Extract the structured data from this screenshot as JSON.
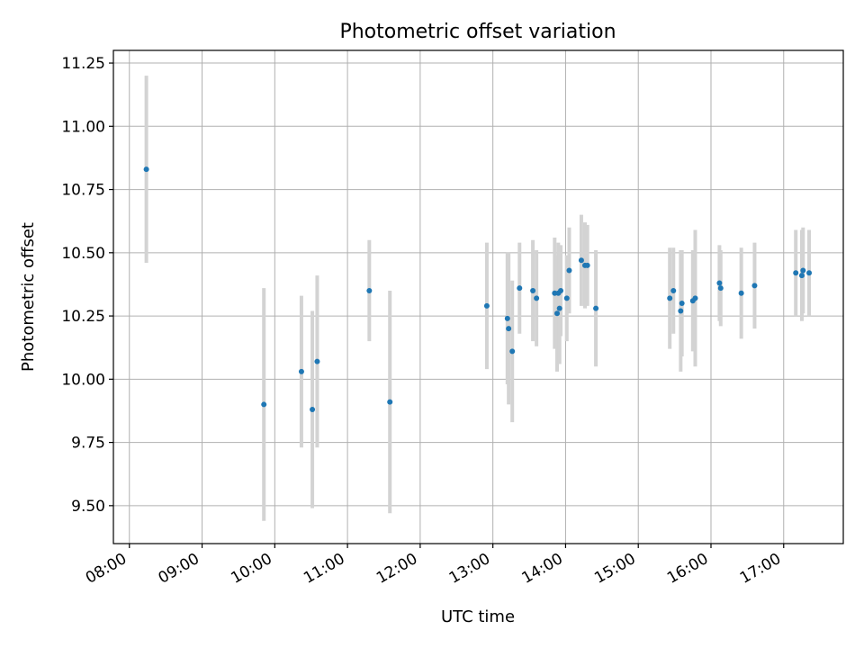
{
  "chart_data": {
    "type": "scatter",
    "title": "Photometric offset variation",
    "xlabel": "UTC time",
    "ylabel": "Photometric offset",
    "x_unit": "hours UTC",
    "xlim": [
      7.78,
      17.82
    ],
    "ylim": [
      9.35,
      11.3
    ],
    "x_ticks": [
      8,
      9,
      10,
      11,
      12,
      13,
      14,
      15,
      16,
      17
    ],
    "x_tick_labels": [
      "08:00",
      "09:00",
      "10:00",
      "11:00",
      "12:00",
      "13:00",
      "14:00",
      "15:00",
      "16:00",
      "17:00"
    ],
    "y_ticks": [
      9.5,
      9.75,
      10.0,
      10.25,
      10.5,
      10.75,
      11.0,
      11.25
    ],
    "y_tick_labels": [
      "9.50",
      "9.75",
      "10.00",
      "10.25",
      "10.50",
      "10.75",
      "11.00",
      "11.25"
    ],
    "grid": true,
    "colors": {
      "point": "#1f77b4",
      "errorbar": "#d3d3d3",
      "grid": "#b0b0b0"
    },
    "series": [
      {
        "points": [
          {
            "x": "08:14",
            "y": 10.83,
            "err": 0.37
          },
          {
            "x": "09:51",
            "y": 9.9,
            "err": 0.46
          },
          {
            "x": "10:22",
            "y": 10.03,
            "err": 0.3
          },
          {
            "x": "10:31",
            "y": 9.88,
            "err": 0.39
          },
          {
            "x": "10:35",
            "y": 10.07,
            "err": 0.34
          },
          {
            "x": "11:18",
            "y": 10.35,
            "err": 0.2
          },
          {
            "x": "11:35",
            "y": 9.91,
            "err": 0.44
          },
          {
            "x": "12:55",
            "y": 10.29,
            "err": 0.25
          },
          {
            "x": "13:12",
            "y": 10.24,
            "err": 0.26
          },
          {
            "x": "13:13",
            "y": 10.2,
            "err": 0.3
          },
          {
            "x": "13:16",
            "y": 10.11,
            "err": 0.28
          },
          {
            "x": "13:22",
            "y": 10.36,
            "err": 0.18
          },
          {
            "x": "13:33",
            "y": 10.35,
            "err": 0.2
          },
          {
            "x": "13:36",
            "y": 10.32,
            "err": 0.19
          },
          {
            "x": "13:51",
            "y": 10.34,
            "err": 0.22
          },
          {
            "x": "13:53",
            "y": 10.26,
            "err": 0.23
          },
          {
            "x": "13:54",
            "y": 10.34,
            "err": 0.2
          },
          {
            "x": "13:55",
            "y": 10.28,
            "err": 0.22
          },
          {
            "x": "13:56",
            "y": 10.35,
            "err": 0.18
          },
          {
            "x": "14:01",
            "y": 10.32,
            "err": 0.17
          },
          {
            "x": "14:03",
            "y": 10.43,
            "err": 0.17
          },
          {
            "x": "14:13",
            "y": 10.47,
            "err": 0.18
          },
          {
            "x": "14:16",
            "y": 10.45,
            "err": 0.17
          },
          {
            "x": "14:18",
            "y": 10.45,
            "err": 0.16
          },
          {
            "x": "14:25",
            "y": 10.28,
            "err": 0.23
          },
          {
            "x": "15:26",
            "y": 10.32,
            "err": 0.2
          },
          {
            "x": "15:29",
            "y": 10.35,
            "err": 0.17
          },
          {
            "x": "15:35",
            "y": 10.27,
            "err": 0.24
          },
          {
            "x": "15:36",
            "y": 10.3,
            "err": 0.21
          },
          {
            "x": "15:45",
            "y": 10.31,
            "err": 0.2
          },
          {
            "x": "15:47",
            "y": 10.32,
            "err": 0.27
          },
          {
            "x": "16:07",
            "y": 10.38,
            "err": 0.15
          },
          {
            "x": "16:08",
            "y": 10.36,
            "err": 0.15
          },
          {
            "x": "16:25",
            "y": 10.34,
            "err": 0.18
          },
          {
            "x": "16:36",
            "y": 10.37,
            "err": 0.17
          },
          {
            "x": "17:10",
            "y": 10.42,
            "err": 0.17
          },
          {
            "x": "17:15",
            "y": 10.41,
            "err": 0.18
          },
          {
            "x": "17:16",
            "y": 10.43,
            "err": 0.17
          },
          {
            "x": "17:21",
            "y": 10.42,
            "err": 0.17
          }
        ]
      }
    ]
  }
}
